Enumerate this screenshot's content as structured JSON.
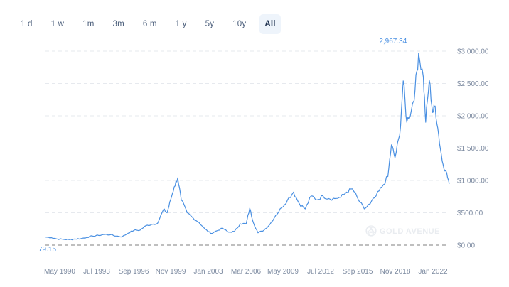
{
  "range_selector": {
    "buttons": [
      {
        "label": "1 d",
        "active": false
      },
      {
        "label": "1 w",
        "active": false
      },
      {
        "label": "1m",
        "active": false
      },
      {
        "label": "3m",
        "active": false
      },
      {
        "label": "6 m",
        "active": false
      },
      {
        "label": "1 y",
        "active": false
      },
      {
        "label": "5y",
        "active": false
      },
      {
        "label": "10y",
        "active": false
      },
      {
        "label": "All",
        "active": true
      }
    ]
  },
  "watermark": {
    "brand": "GOLD AVENUE",
    "icon": "gold-avenue-logo-icon"
  },
  "annotations": {
    "max_label": "2,967.34",
    "min_label": "79.15"
  },
  "colors": {
    "line": "#4a90e2",
    "grid": "#e6e9ee",
    "baseline": "#555555",
    "axis_text": "#7c8aa0",
    "active_btn_bg": "#eef4fb"
  },
  "chart_data": {
    "type": "line",
    "title": "",
    "xlabel": "",
    "ylabel": "",
    "ylim": [
      0,
      3000
    ],
    "grid": true,
    "legend": "none",
    "y_ticks": [
      "$3,000.00",
      "$2,500.00",
      "$2,000.00",
      "$1,500.00",
      "$1,000.00",
      "$500.00",
      "$0.00"
    ],
    "y_tick_values": [
      3000,
      2500,
      2000,
      1500,
      1000,
      500,
      0
    ],
    "x_ticks": [
      "May 1990",
      "Jul 1993",
      "Sep 1996",
      "Nov 1999",
      "Jan 2003",
      "Mar 2006",
      "May 2009",
      "Jul 2012",
      "Sep 2015",
      "Nov 2018",
      "Jan 2022"
    ],
    "annotations": [
      {
        "text": "2,967.34",
        "type": "max",
        "approx_date": "Mar 2021"
      },
      {
        "text": "79.15",
        "type": "min"
      }
    ],
    "x": [
      1989.0,
      1989.5,
      1990.0,
      1990.5,
      1991.0,
      1991.5,
      1992.0,
      1992.5,
      1993.0,
      1993.5,
      1994.0,
      1994.5,
      1995.0,
      1995.5,
      1996.0,
      1996.5,
      1997.0,
      1997.5,
      1998.0,
      1998.5,
      1999.0,
      1999.3,
      1999.6,
      1999.9,
      2000.2,
      2000.5,
      2001.0,
      2001.5,
      2002.0,
      2002.5,
      2003.0,
      2003.5,
      2004.0,
      2004.5,
      2005.0,
      2005.5,
      2006.0,
      2006.3,
      2006.6,
      2007.0,
      2007.5,
      2008.0,
      2008.5,
      2009.0,
      2009.5,
      2010.0,
      2010.5,
      2011.0,
      2011.5,
      2012.0,
      2012.5,
      2013.0,
      2013.5,
      2014.0,
      2014.5,
      2015.0,
      2015.5,
      2016.0,
      2016.5,
      2017.0,
      2017.5,
      2018.0,
      2018.3,
      2018.6,
      2019.0,
      2019.3,
      2019.6,
      2020.0,
      2020.3,
      2020.6,
      2021.0,
      2021.2,
      2021.5,
      2021.8,
      2022.0,
      2022.3,
      2022.6,
      2022.9,
      2023.2
    ],
    "series": [
      {
        "name": "Price (USD)",
        "values": [
          125,
          115,
          95,
          90,
          85,
          95,
          100,
          120,
          140,
          150,
          165,
          160,
          140,
          130,
          185,
          230,
          230,
          300,
          320,
          340,
          550,
          500,
          700,
          900,
          1040,
          700,
          500,
          420,
          350,
          250,
          180,
          220,
          260,
          200,
          210,
          330,
          330,
          570,
          350,
          190,
          230,
          320,
          460,
          580,
          700,
          820,
          640,
          560,
          760,
          700,
          760,
          720,
          720,
          740,
          820,
          870,
          700,
          560,
          640,
          760,
          900,
          1060,
          1550,
          1350,
          1700,
          2540,
          1900,
          2100,
          2400,
          2967,
          2600,
          1900,
          2550,
          2050,
          2150,
          1700,
          1300,
          1150,
          950
        ]
      }
    ]
  }
}
